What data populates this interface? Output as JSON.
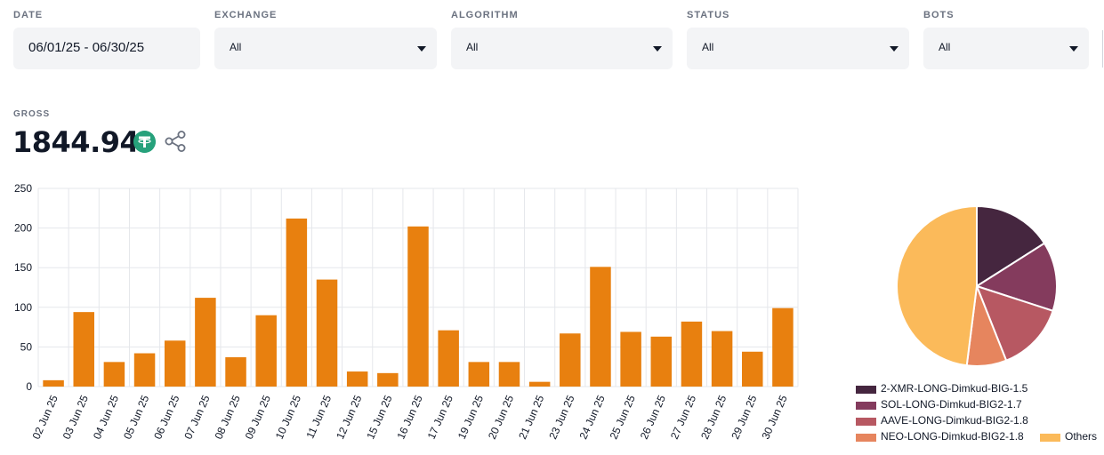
{
  "filters": [
    {
      "label": "DATE",
      "value": "06/01/25 - 06/30/25",
      "kind": "date"
    },
    {
      "label": "EXCHANGE",
      "value": "All",
      "kind": "select"
    },
    {
      "label": "ALGORITHM",
      "value": "All",
      "kind": "select"
    },
    {
      "label": "STATUS",
      "value": "All",
      "kind": "select"
    },
    {
      "label": "BOTS",
      "value": "All",
      "kind": "select"
    }
  ],
  "gross": {
    "label": "GROSS",
    "value": "1844.94",
    "currency_icon": "tether-icon",
    "share_icon": "share-icon"
  },
  "colors": {
    "bar": "#e8800f",
    "grid": "#e5e7eb",
    "tether": "#26a17b"
  },
  "chart_data": [
    {
      "type": "bar",
      "categories": [
        "02 Jun 25",
        "03 Jun 25",
        "04 Jun 25",
        "05 Jun 25",
        "06 Jun 25",
        "07 Jun 25",
        "08 Jun 25",
        "09 Jun 25",
        "10 Jun 25",
        "11 Jun 25",
        "12 Jun 25",
        "15 Jun 25",
        "16 Jun 25",
        "17 Jun 25",
        "19 Jun 25",
        "20 Jun 25",
        "21 Jun 25",
        "23 Jun 25",
        "24 Jun 25",
        "25 Jun 25",
        "26 Jun 25",
        "27 Jun 25",
        "28 Jun 25",
        "29 Jun 25",
        "30 Jun 25"
      ],
      "values": [
        8,
        94,
        31,
        42,
        58,
        112,
        37,
        90,
        212,
        135,
        19,
        17,
        202,
        71,
        31,
        31,
        6,
        67,
        151,
        69,
        63,
        82,
        70,
        44,
        99
      ],
      "yticks": [
        0,
        50,
        100,
        150,
        200,
        250
      ],
      "ylim": [
        0,
        250
      ],
      "grid": true
    },
    {
      "type": "pie",
      "legend_position": "bottom",
      "slices": [
        {
          "label": "2-XMR-LONG-Dimkud-BIG-1.5",
          "value": 16,
          "color": "#45263f"
        },
        {
          "label": "SOL-LONG-Dimkud-BIG2-1.7",
          "value": 14,
          "color": "#843b5d"
        },
        {
          "label": "AAVE-LONG-Dimkud-BIG2-1.8",
          "value": 14,
          "color": "#b75862"
        },
        {
          "label": "NEO-LONG-Dimkud-BIG2-1.8",
          "value": 8,
          "color": "#e6855e"
        },
        {
          "label": "Others",
          "value": 48,
          "color": "#fbba5a"
        }
      ]
    }
  ]
}
